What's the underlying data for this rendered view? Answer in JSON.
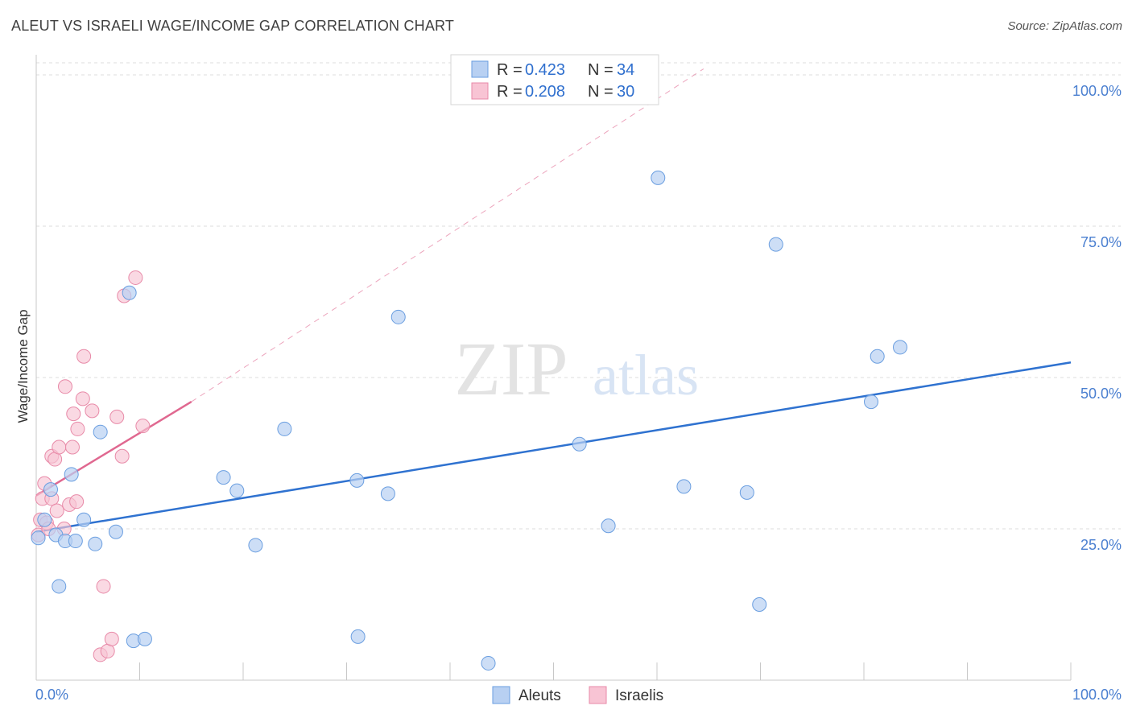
{
  "title": "ALEUT VS ISRAELI WAGE/INCOME GAP CORRELATION CHART",
  "source": "Source: ZipAtlas.com",
  "watermark": {
    "zip": "ZIP",
    "atlas": "atlas"
  },
  "colors": {
    "aleut_fill": "#b8d0f2",
    "aleut_stroke": "#6a9ee0",
    "aleut_line": "#2f72d0",
    "israeli_fill": "#f8c4d4",
    "israeli_stroke": "#e88aa8",
    "israeli_line": "#e06890",
    "axis_text": "#4a7fd0",
    "grid": "#dddddd"
  },
  "legend": {
    "rows": [
      {
        "r_label": "R =",
        "r_value": "0.423",
        "n_label": "N =",
        "n_value": "34"
      },
      {
        "r_label": "R =",
        "r_value": "0.208",
        "n_label": "N =",
        "n_value": "30"
      }
    ]
  },
  "chart_data": {
    "type": "scatter",
    "title": "ALEUT VS ISRAELI WAGE/INCOME GAP CORRELATION CHART",
    "xlabel": "",
    "ylabel": "Wage/Income Gap",
    "xlim": [
      0,
      100
    ],
    "ylim": [
      0,
      102
    ],
    "y_ticks": [
      25,
      50,
      75,
      100
    ],
    "y_tick_labels": [
      "25.0%",
      "50.0%",
      "75.0%",
      "100.0%"
    ],
    "x_tick_labels": [
      "0.0%",
      "100.0%"
    ],
    "series": [
      {
        "name": "Aleuts",
        "r": 0.423,
        "n": 34,
        "points": [
          [
            0.2,
            23.5
          ],
          [
            0.8,
            26.5
          ],
          [
            1.4,
            31.5
          ],
          [
            1.9,
            24.0
          ],
          [
            2.2,
            15.5
          ],
          [
            2.8,
            23.0
          ],
          [
            3.4,
            34.0
          ],
          [
            3.8,
            23.0
          ],
          [
            4.6,
            26.5
          ],
          [
            5.7,
            22.5
          ],
          [
            6.2,
            41.0
          ],
          [
            7.7,
            24.5
          ],
          [
            9.0,
            64.0
          ],
          [
            9.4,
            6.5
          ],
          [
            10.5,
            6.8
          ],
          [
            18.1,
            33.5
          ],
          [
            19.4,
            31.3
          ],
          [
            21.2,
            22.3
          ],
          [
            24.0,
            41.5
          ],
          [
            31.0,
            33.0
          ],
          [
            31.1,
            7.2
          ],
          [
            34.0,
            30.8
          ],
          [
            35.0,
            60.0
          ],
          [
            43.7,
            2.8
          ],
          [
            52.5,
            39.0
          ],
          [
            55.3,
            25.5
          ],
          [
            60.1,
            83.0
          ],
          [
            62.6,
            32.0
          ],
          [
            68.7,
            31.0
          ],
          [
            69.9,
            12.5
          ],
          [
            71.5,
            72.0
          ],
          [
            80.7,
            46.0
          ],
          [
            81.3,
            53.5
          ],
          [
            83.5,
            55.0
          ]
        ],
        "trend": {
          "x": [
            0,
            100
          ],
          "y": [
            24.5,
            52.5
          ]
        }
      },
      {
        "name": "Israelis",
        "r": 0.208,
        "n": 30,
        "points": [
          [
            0.2,
            24.0
          ],
          [
            0.4,
            26.5
          ],
          [
            0.6,
            30.0
          ],
          [
            0.8,
            32.5
          ],
          [
            1.0,
            26.0
          ],
          [
            1.2,
            25.0
          ],
          [
            1.5,
            30.0
          ],
          [
            1.5,
            37.0
          ],
          [
            1.8,
            36.5
          ],
          [
            2.0,
            28.0
          ],
          [
            2.2,
            38.5
          ],
          [
            2.7,
            25.0
          ],
          [
            2.8,
            48.5
          ],
          [
            3.2,
            29.0
          ],
          [
            3.5,
            38.5
          ],
          [
            3.6,
            44.0
          ],
          [
            3.9,
            29.5
          ],
          [
            4.0,
            41.5
          ],
          [
            4.5,
            46.5
          ],
          [
            4.6,
            53.5
          ],
          [
            5.4,
            44.5
          ],
          [
            6.2,
            4.2
          ],
          [
            6.5,
            15.5
          ],
          [
            6.9,
            4.8
          ],
          [
            7.3,
            6.8
          ],
          [
            7.8,
            43.5
          ],
          [
            8.3,
            37.0
          ],
          [
            8.5,
            63.5
          ],
          [
            9.6,
            66.5
          ],
          [
            10.3,
            42.0
          ]
        ],
        "trend": {
          "x": [
            0,
            15
          ],
          "y": [
            30.5,
            46.0
          ]
        },
        "trend_extended": {
          "x": [
            15,
            64.5
          ],
          "y": [
            46.0,
            101.0
          ]
        }
      }
    ],
    "legend": [
      "Aleuts",
      "Israelis"
    ]
  }
}
